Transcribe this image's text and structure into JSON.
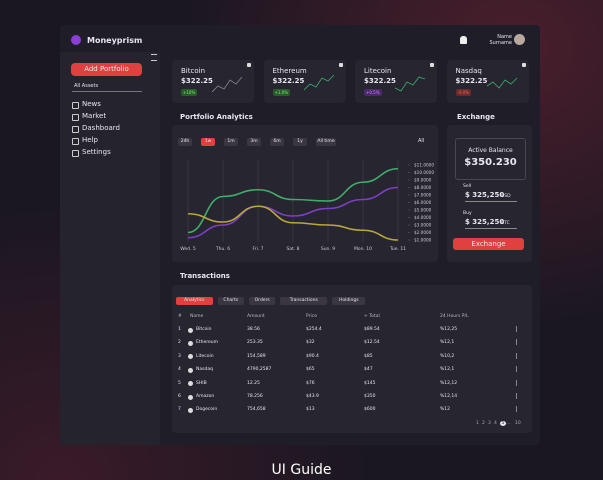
{
  "brand": "Moneyprism",
  "user": {
    "name": "Name",
    "surname": "Surname"
  },
  "sidebar": {
    "button": "Add Portfolio",
    "search": "All Assets",
    "items": [
      "News",
      "Market",
      "Dashboard",
      "Help",
      "Settings"
    ]
  },
  "cards": [
    {
      "name": "Bitcoin",
      "price": "$322.25",
      "change": "+10%"
    },
    {
      "name": "Ethereum",
      "price": "$322.25",
      "change": "+1.0%"
    },
    {
      "name": "Litecoin",
      "price": "$322.25",
      "change": "+0.5%"
    },
    {
      "name": "Nasdaq",
      "price": "$322.25",
      "change": "-0.0%"
    }
  ],
  "analytics": {
    "title": "Portfolio Analytics",
    "ranges": [
      "24h",
      "1w",
      "1m",
      "3m",
      "6m",
      "1y",
      "All time"
    ],
    "dropdown": "All",
    "chart": {
      "type": "line",
      "categories": [
        "Wed. 5",
        "Thu. 6",
        "Fri. 7",
        "Sat. 8",
        "Sun. 9",
        "Mon. 10",
        "Tue. 11"
      ],
      "series": [
        {
          "name": "Green",
          "color": "#3fae6a",
          "values": [
            2,
            6.8,
            7.7,
            6.4,
            6.2,
            8.7,
            10.5
          ]
        },
        {
          "name": "Purple",
          "color": "#7b3fc4",
          "values": [
            1.3,
            3,
            5.5,
            4.2,
            5.2,
            6.4,
            8
          ]
        },
        {
          "name": "Yellow",
          "color": "#b8a83a",
          "values": [
            4.5,
            3.4,
            5.5,
            3.3,
            3,
            2.3,
            1
          ]
        }
      ],
      "ylim": [
        1,
        11
      ],
      "yticks": [
        {
          "value": 1,
          "label": "$1.0000"
        },
        {
          "value": 2,
          "label": "$2.0000"
        },
        {
          "value": 3,
          "label": "$3.0000"
        },
        {
          "value": 4,
          "label": "$4.0000"
        },
        {
          "value": 5,
          "label": "$5.0000"
        },
        {
          "value": 6,
          "label": "$6.0000"
        },
        {
          "value": 7,
          "label": "$7.0000"
        },
        {
          "value": 8,
          "label": "$8.0000"
        },
        {
          "value": 9,
          "label": "$9.0000"
        },
        {
          "value": 10,
          "label": "$10.0000"
        },
        {
          "value": 11,
          "label": "$11.0000"
        }
      ],
      "grid": true
    }
  },
  "exchange": {
    "title": "Exchange",
    "balance_label": "Active Balance",
    "balance": "$350.230",
    "sell_label": "Sell",
    "sell_value": "$ 325,250",
    "sell_currency": "USD",
    "buy_label": "Buy",
    "buy_value": "$ 325,250",
    "buy_currency": "BTC",
    "button": "Exchange"
  },
  "transactions": {
    "title": "Transactions",
    "tabs": [
      "Analytics",
      "Charts",
      "Orders",
      "Transactions",
      "Holdings"
    ],
    "columns": [
      "#",
      "Name",
      "Amount",
      "Price",
      "+ Total",
      "24 Hours P/L"
    ],
    "rows": [
      [
        "1",
        "Bitcoin",
        "38.56",
        "$254.4",
        "$89.54",
        "%12,25"
      ],
      [
        "2",
        "Ethereum",
        "253.35",
        "$32",
        "$12.54",
        "%12,1"
      ],
      [
        "3",
        "Litecoin",
        "154,589",
        "$90.4",
        "$85",
        "%10,2"
      ],
      [
        "4",
        "Nasdaq",
        "4790,2587",
        "$65",
        "$47",
        "%12,1"
      ],
      [
        "5",
        "SHIB",
        "12.25",
        "$76",
        "$145",
        "%12,12"
      ],
      [
        "6",
        "Amazon",
        "78.256",
        "$43.9",
        "$350",
        "%12,14"
      ],
      [
        "7",
        "Dogecoin",
        "754,658",
        "$13",
        "$600",
        "%12"
      ]
    ],
    "pagination": [
      "1",
      "2",
      "3",
      "4",
      "5",
      "...",
      "10"
    ]
  },
  "caption": "UI Guide"
}
